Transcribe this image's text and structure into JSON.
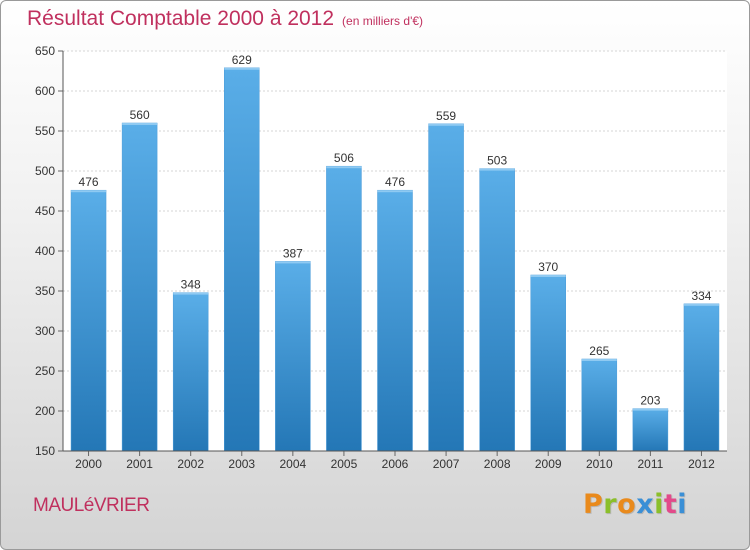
{
  "page": {
    "title": "Résultat Comptable 2000 à 2012",
    "unit": "(en milliers d'€)",
    "commune": "MAULéVRIER",
    "logo_text": "Proxiti"
  },
  "colors": {
    "title": "#c0305e",
    "bar_light": "#5aaee8",
    "bar_dark": "#2477b6",
    "logo_letters": [
      "#e98a1c",
      "#8bbf2a",
      "#e98a1c",
      "#3a8fd6",
      "#8bbf2a",
      "#e24a8a",
      "#3a8fd6"
    ]
  },
  "chart_data": {
    "type": "bar",
    "title": "Résultat Comptable 2000 à 2012",
    "subtitle": "(en milliers d'€)",
    "xlabel": "",
    "ylabel": "",
    "categories": [
      "2000",
      "2001",
      "2002",
      "2003",
      "2004",
      "2005",
      "2006",
      "2007",
      "2008",
      "2009",
      "2010",
      "2011",
      "2012"
    ],
    "values": [
      476,
      560,
      348,
      629,
      387,
      506,
      476,
      559,
      503,
      370,
      265,
      203,
      334
    ],
    "ylim": [
      150,
      650
    ],
    "yticks": [
      150,
      200,
      250,
      300,
      350,
      400,
      450,
      500,
      550,
      600,
      650
    ],
    "grid": true,
    "data_labels": true
  }
}
